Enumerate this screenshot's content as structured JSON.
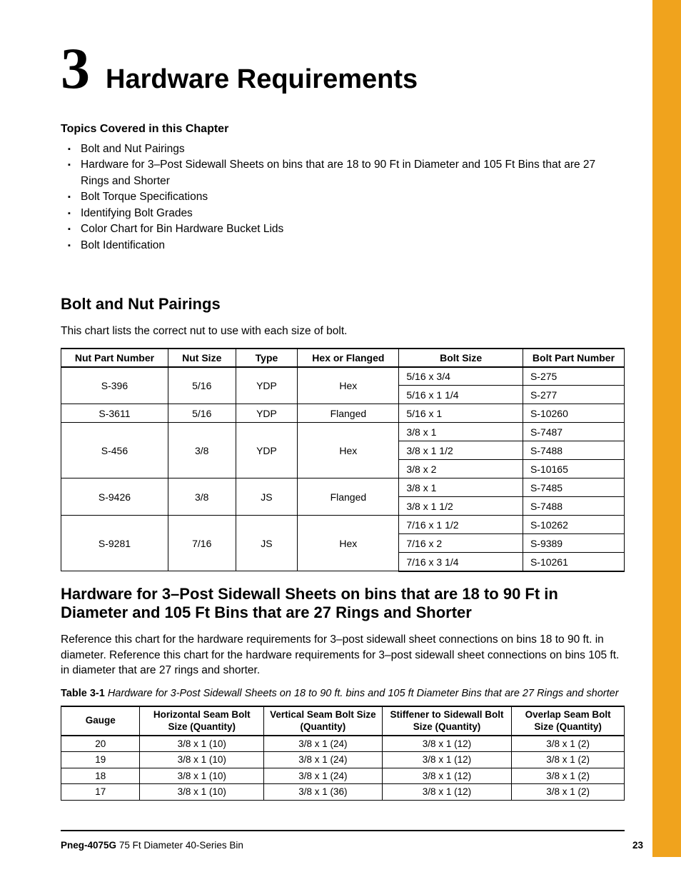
{
  "colors": {
    "accent": "#f0a31d",
    "text": "#000000",
    "bg": "#ffffff"
  },
  "chapter": {
    "number": "3",
    "title": "Hardware Requirements"
  },
  "topics": {
    "heading": "Topics Covered in this Chapter",
    "items": [
      "Bolt and Nut Pairings",
      "Hardware for 3–Post Sidewall Sheets on bins that are 18 to 90 Ft in Diameter and 105 Ft Bins that are 27 Rings and Shorter",
      "Bolt Torque Specifications",
      "Identifying Bolt Grades",
      "Color Chart for Bin Hardware Bucket Lids",
      "Bolt Identification"
    ]
  },
  "pairings": {
    "heading": "Bolt and Nut Pairings",
    "intro": "This chart lists the correct nut to use with each size of bolt.",
    "columns": [
      "Nut Part Number",
      "Nut Size",
      "Type",
      "Hex or Flanged",
      "Bolt Size",
      "Bolt Part Number"
    ],
    "groups": [
      {
        "nut": "S-396",
        "size": "5/16",
        "type": "YDP",
        "hex": "Hex",
        "rows": [
          [
            "5/16 x 3/4",
            "S-275"
          ],
          [
            "5/16 x 1 1/4",
            "S-277"
          ]
        ]
      },
      {
        "nut": "S-3611",
        "size": "5/16",
        "type": "YDP",
        "hex": "Flanged",
        "rows": [
          [
            "5/16 x 1",
            "S-10260"
          ]
        ]
      },
      {
        "nut": "S-456",
        "size": "3/8",
        "type": "YDP",
        "hex": "Hex",
        "rows": [
          [
            "3/8 x 1",
            "S-7487"
          ],
          [
            "3/8 x 1 1/2",
            "S-7488"
          ],
          [
            "3/8 x 2",
            "S-10165"
          ]
        ]
      },
      {
        "nut": "S-9426",
        "size": "3/8",
        "type": "JS",
        "hex": "Flanged",
        "rows": [
          [
            "3/8 x 1",
            "S-7485"
          ],
          [
            "3/8 x 1 1/2",
            "S-7488"
          ]
        ]
      },
      {
        "nut": "S-9281",
        "size": "7/16",
        "type": "JS",
        "hex": "Hex",
        "rows": [
          [
            "7/16 x 1 1/2",
            "S-10262"
          ],
          [
            "7/16 x 2",
            "S-9389"
          ],
          [
            "7/16 x 3 1/4",
            "S-10261"
          ]
        ]
      }
    ]
  },
  "hardware": {
    "heading": "Hardware for 3–Post Sidewall Sheets on bins that are 18 to 90 Ft in Diameter and 105 Ft Bins that are 27 Rings and Shorter",
    "intro": "Reference this chart for the hardware requirements for 3–post sidewall sheet connections on bins 18 to 90 ft. in diameter. Reference this chart for the hardware requirements for 3–post sidewall sheet connections on bins 105 ft. in diameter that are 27 rings and shorter.",
    "caption_label": "Table 3-1",
    "caption_text": "Hardware for 3-Post Sidewall Sheets on 18 to 90 ft. bins and 105 ft Diameter Bins that are 27 Rings and shorter",
    "columns": [
      "Gauge",
      "Horizontal Seam Bolt Size (Quantity)",
      "Vertical Seam Bolt Size (Quantity)",
      "Stiffener to Sidewall Bolt Size (Quantity)",
      "Overlap Seam Bolt Size (Quantity)"
    ],
    "rows": [
      [
        "20",
        "3/8 x 1 (10)",
        "3/8 x 1 (24)",
        "3/8 x 1 (12)",
        "3/8 x 1 (2)"
      ],
      [
        "19",
        "3/8 x 1 (10)",
        "3/8 x 1 (24)",
        "3/8 x 1 (12)",
        "3/8 x 1 (2)"
      ],
      [
        "18",
        "3/8 x 1 (10)",
        "3/8 x 1 (24)",
        "3/8 x 1 (12)",
        "3/8 x 1 (2)"
      ],
      [
        "17",
        "3/8 x 1 (10)",
        "3/8 x 1 (36)",
        "3/8 x 1 (12)",
        "3/8 x 1 (2)"
      ]
    ]
  },
  "footer": {
    "doc_id": "Pneg-4075G",
    "doc_title": "75 Ft Diameter 40-Series Bin",
    "page_number": "23"
  }
}
